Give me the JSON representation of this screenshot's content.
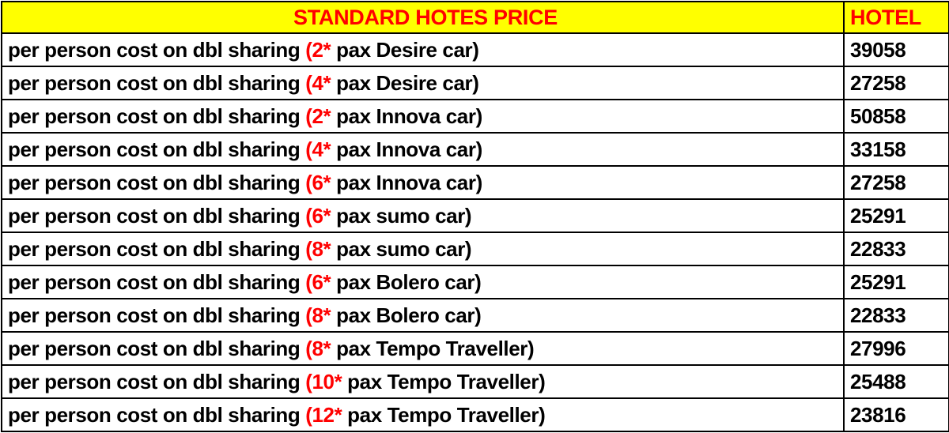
{
  "table": {
    "header": {
      "title": "STANDARD HOTES PRICE",
      "price_column": "HOTEL"
    },
    "rows": [
      {
        "prefix": "per person cost on dbl sharing ",
        "highlight": "(2*",
        "suffix": " pax Desire car)",
        "price": "39058"
      },
      {
        "prefix": "per person cost on dbl sharing ",
        "highlight": "(4*",
        "suffix": " pax Desire car)",
        "price": "27258"
      },
      {
        "prefix": "per person cost on dbl sharing ",
        "highlight": "(2*",
        "suffix": " pax Innova car)",
        "price": "50858"
      },
      {
        "prefix": "per person cost on dbl sharing ",
        "highlight": "(4*",
        "suffix": " pax Innova car)",
        "price": "33158"
      },
      {
        "prefix": "per person cost on dbl sharing ",
        "highlight": "(6*",
        "suffix": " pax Innova car)",
        "price": "27258"
      },
      {
        "prefix": "per person cost on dbl sharing ",
        "highlight": "(6*",
        "suffix": " pax sumo car)",
        "price": "25291"
      },
      {
        "prefix": "per person cost on dbl sharing ",
        "highlight": "(8*",
        "suffix": " pax sumo car)",
        "price": "22833"
      },
      {
        "prefix": "per person cost on dbl sharing ",
        "highlight": "(6*",
        "suffix": " pax Bolero car)",
        "price": "25291"
      },
      {
        "prefix": "per person cost on dbl sharing ",
        "highlight": "(8*",
        "suffix": " pax Bolero car)",
        "price": "22833"
      },
      {
        "prefix": "per person cost on dbl sharing ",
        "highlight": "(8*",
        "suffix": " pax Tempo Traveller)",
        "price": "27996"
      },
      {
        "prefix": "per person cost on dbl sharing ",
        "highlight": "(10*",
        "suffix": " pax Tempo Traveller)",
        "price": "25488"
      },
      {
        "prefix": "per person cost on dbl sharing ",
        "highlight": "(12*",
        "suffix": " pax Tempo Traveller)",
        "price": "23816"
      }
    ]
  },
  "colors": {
    "header_bg": "#FFFF00",
    "header_text": "#FF0000",
    "highlight_text": "#FF0000",
    "body_text": "#000000",
    "border": "#000000"
  }
}
